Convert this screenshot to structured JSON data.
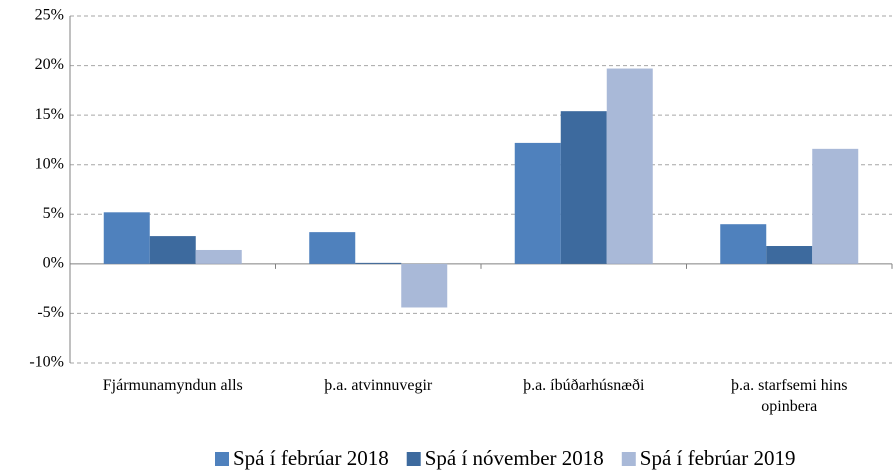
{
  "chart_data": {
    "type": "bar",
    "categories": [
      "Fjármunamyndun alls",
      "þ.a. atvinnuvegir",
      "þ.a. íbúðarhúsnæði",
      "þ.a. starfsemi hins opinbera"
    ],
    "series": [
      {
        "name": "Spá í febrúar 2018",
        "color": "#4f81bd",
        "values": [
          5.2,
          3.2,
          12.2,
          4.0
        ]
      },
      {
        "name": "Spá í nóvember 2018",
        "color": "#3d6a9e",
        "values": [
          2.8,
          0.1,
          15.4,
          1.8
        ]
      },
      {
        "name": "Spá í febrúar 2019",
        "color": "#a9b9d8",
        "values": [
          1.4,
          -4.4,
          19.7,
          11.6
        ]
      }
    ],
    "ylim": [
      -10,
      25
    ],
    "yticks": [
      {
        "value": -10,
        "label": "-10%"
      },
      {
        "value": -5,
        "label": "-5%"
      },
      {
        "value": 0,
        "label": "0%"
      },
      {
        "value": 5,
        "label": "5%"
      },
      {
        "value": 10,
        "label": "10%"
      },
      {
        "value": 15,
        "label": "15%"
      },
      {
        "value": 20,
        "label": "20%"
      },
      {
        "value": 25,
        "label": "25%"
      }
    ],
    "grid": true
  }
}
